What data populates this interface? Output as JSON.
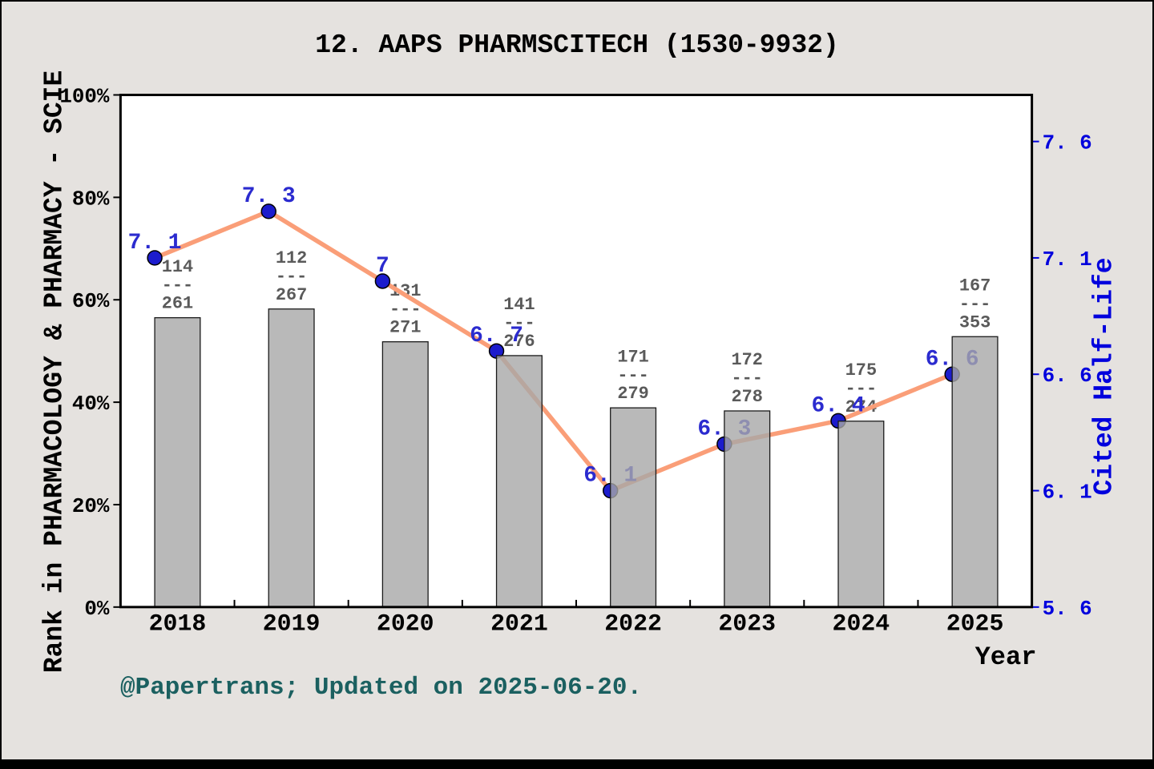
{
  "page": {
    "footer": "@Papertrans; Updated on 2025-06-20."
  },
  "colors": {
    "background": "#e5e2df",
    "plot_background": "#ffffff",
    "plot_border": "#000000",
    "bar_fill": "#a7a7a7",
    "bar_opacity": 0.8,
    "bar_border": "#1a1a1a",
    "line": "#fa9e78",
    "point_fill": "#1c1ccd",
    "point_border": "#000000",
    "point_label": "#2b2bcf",
    "right_axis_color": "#0000dd",
    "left_axis_color": "#000000",
    "fraction_color": "#5a5a5a",
    "footer_color": "#1b6060"
  },
  "chart_data": {
    "type": "bar+line",
    "title": "12. AAPS PHARMSCITECH (1530-9932)",
    "categories": [
      "2018",
      "2019",
      "2020",
      "2021",
      "2022",
      "2023",
      "2024",
      "2025"
    ],
    "series": [
      {
        "name": "rank-percentile-bars",
        "type": "bar",
        "axis": "left",
        "values_pct": [
          56.5,
          58.2,
          51.8,
          49.1,
          38.9,
          38.3,
          36.3,
          52.8
        ],
        "rank_fractions": [
          {
            "numerator": "114",
            "denominator": "261"
          },
          {
            "numerator": "112",
            "denominator": "267"
          },
          {
            "numerator": "131",
            "denominator": "271"
          },
          {
            "numerator": "141",
            "denominator": "276"
          },
          {
            "numerator": "171",
            "denominator": "279"
          },
          {
            "numerator": "172",
            "denominator": "278"
          },
          {
            "numerator": "175",
            "denominator": "274"
          },
          {
            "numerator": "167",
            "denominator": "353"
          }
        ],
        "fraction_separator": "---"
      },
      {
        "name": "cited-half-life-line",
        "type": "line",
        "axis": "right",
        "values": [
          7.1,
          7.3,
          7.0,
          6.7,
          6.1,
          6.3,
          6.4,
          6.6
        ],
        "point_labels": [
          "7. 1",
          "7. 3",
          "7",
          "6. 7",
          "6. 1",
          "6. 3",
          "6. 4",
          "6. 6"
        ]
      }
    ],
    "left_axis": {
      "title": "Rank in PHARMACOLOGY & PHARMACY - SCIE",
      "range": [
        0,
        100
      ],
      "ticks": [
        0,
        20,
        40,
        60,
        80,
        100
      ],
      "tick_labels": [
        "0%",
        "20%",
        "40%",
        "60%",
        "80%",
        "100%"
      ]
    },
    "right_axis": {
      "title": "Cited Half-Life",
      "range": [
        5.6,
        7.8
      ],
      "ticks": [
        5.6,
        6.1,
        6.6,
        7.1,
        7.6
      ],
      "tick_labels": [
        "5. 6",
        "6. 1",
        "6. 6",
        "7. 1",
        "7. 6"
      ]
    },
    "x_axis": {
      "title": "Year"
    },
    "grid": false,
    "legend": false
  }
}
